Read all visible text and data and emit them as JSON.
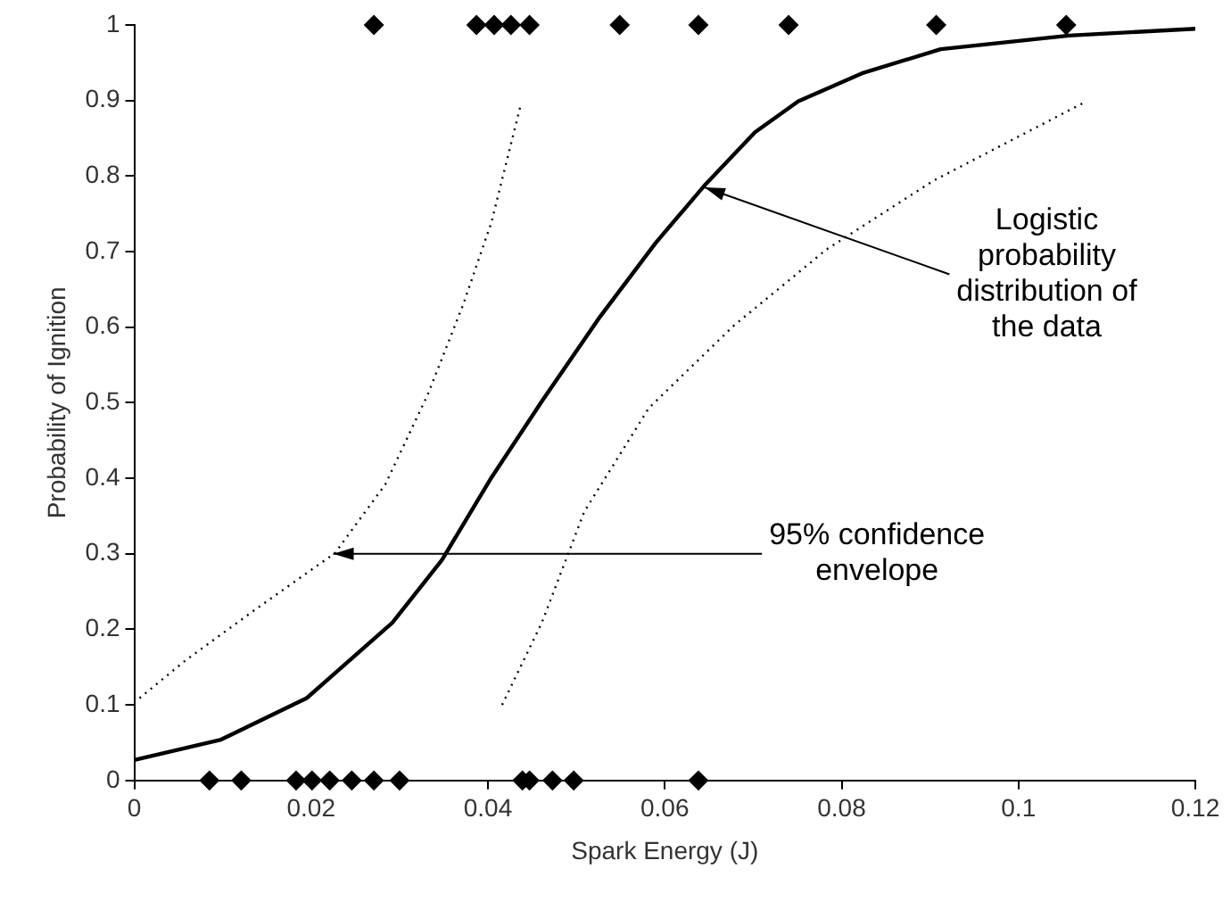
{
  "chart_data": {
    "type": "line",
    "xlabel": "Spark Energy (J)",
    "ylabel": "Probability of Ignition",
    "xlim": [
      0,
      0.12
    ],
    "xticks": [
      0,
      0.02,
      0.04,
      0.06,
      0.08,
      0.1,
      0.12
    ],
    "ylim": [
      0,
      1
    ],
    "yticks": [
      0,
      0.1,
      0.2,
      0.3,
      0.4,
      0.5,
      0.6,
      0.7,
      0.8,
      0.9,
      1
    ],
    "grid": false,
    "legend": false,
    "series": [
      {
        "color": "#000000",
        "line_style": "solid",
        "marker": "none",
        "x": [
          0,
          0.0098,
          0.0195,
          0.0292,
          0.0348,
          0.0404,
          0.0461,
          0.0525,
          0.059,
          0.0646,
          0.0702,
          0.0751,
          0.0823,
          0.0912,
          0.1057,
          0.12
        ],
        "values": [
          0.027,
          0.054,
          0.109,
          0.209,
          0.292,
          0.401,
          0.502,
          0.611,
          0.712,
          0.789,
          0.858,
          0.899,
          0.936,
          0.968,
          0.986,
          0.995
        ]
      },
      {
        "color": "#000000",
        "line_style": "dotted",
        "marker": "none",
        "x": [
          0.0006,
          0.0058,
          0.0139,
          0.0227,
          0.0284,
          0.0332,
          0.0372,
          0.0404,
          0.0437
        ],
        "values": [
          0.109,
          0.159,
          0.228,
          0.301,
          0.392,
          0.511,
          0.63,
          0.739,
          0.894
        ]
      },
      {
        "color": "#000000",
        "line_style": "dotted",
        "marker": "none",
        "x": [
          0.0416,
          0.0461,
          0.0509,
          0.0582,
          0.0678,
          0.0783,
          0.0904,
          0.1077
        ],
        "values": [
          0.1,
          0.209,
          0.356,
          0.493,
          0.602,
          0.703,
          0.794,
          0.899
        ]
      },
      {
        "type": "scatter",
        "color": "#000000",
        "marker": "diamond",
        "x": [
          0.0085,
          0.0121,
          0.0183,
          0.0201,
          0.0221,
          0.0246,
          0.0271,
          0.03,
          0.0439,
          0.0447,
          0.0473,
          0.0497,
          0.0638,
          0.0271,
          0.0387,
          0.0407,
          0.0426,
          0.0447,
          0.0549,
          0.0638,
          0.074,
          0.0907,
          0.1054
        ],
        "values": [
          0,
          0,
          0,
          0,
          0,
          0,
          0,
          0,
          0,
          0,
          0,
          0,
          0,
          1,
          1,
          1,
          1,
          1,
          1,
          1,
          1,
          1,
          1
        ]
      }
    ],
    "annotations": [
      {
        "text": "Logistic\nprobability\ndistribution of\nthe data",
        "x": 0.0645,
        "y": 0.785
      },
      {
        "text": "95% confidence\nenvelope",
        "x": 0.0225,
        "y": 0.3
      }
    ]
  }
}
